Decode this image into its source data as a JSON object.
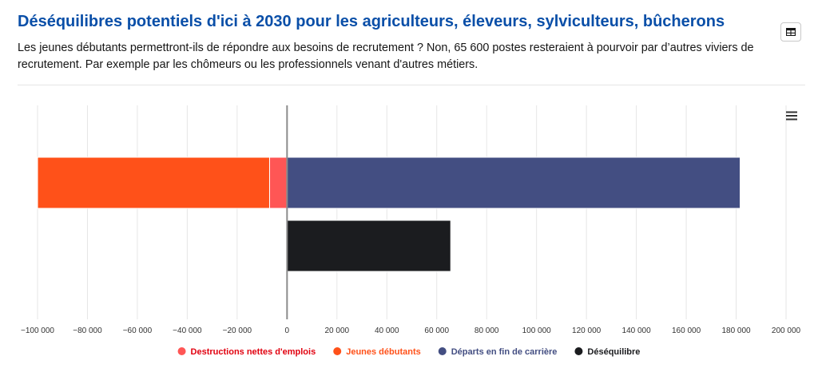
{
  "header": {
    "title": "Déséquilibres potentiels d'ici à 2030 pour les agriculteurs, éleveurs, sylviculteurs, bûcherons",
    "subtitle": "Les jeunes débutants permettront-ils de répondre aux besoins de recrutement ? Non, 65 600 postes resteraient à pourvoir par d’autres viviers de recrutement. Par exemple par les chômeurs ou les professionnels venant d'autres métiers.",
    "table_icon": "table-icon"
  },
  "menu_icon": "hamburger-menu-icon",
  "chart_data": {
    "type": "bar",
    "orientation": "horizontal",
    "stacked": true,
    "title": "",
    "xlabel": "",
    "ylabel": "",
    "xlim": [
      -100000,
      200000
    ],
    "x_ticks": [
      -100000,
      -80000,
      -60000,
      -40000,
      -20000,
      0,
      20000,
      40000,
      60000,
      80000,
      100000,
      120000,
      140000,
      160000,
      180000,
      200000
    ],
    "x_tick_labels": [
      "−100 000",
      "−80 000",
      "−60 000",
      "−40 000",
      "−20 000",
      "0",
      "20 000",
      "40 000",
      "60 000",
      "80 000",
      "100 000",
      "120 000",
      "140 000",
      "160 000",
      "180 000",
      "200 000"
    ],
    "grid": true,
    "legend_position": "bottom-center",
    "series": [
      {
        "name": "Destructions nettes d'emplois",
        "color": "#ff5655",
        "bar": 0,
        "stack": "negative",
        "value": -7000
      },
      {
        "name": "Jeunes débutants",
        "color": "#ff5119",
        "bar": 0,
        "stack": "negative",
        "value": -93000
      },
      {
        "name": "Départs en fin de carrière",
        "color": "#434e82",
        "bar": 0,
        "stack": "positive",
        "value": 181600
      },
      {
        "name": "Déséquilibre",
        "color": "#1b1c1f",
        "bar": 1,
        "stack": "positive",
        "value": 65600
      }
    ],
    "legend": [
      {
        "label": "Destructions nettes d'emplois",
        "color": "#ff5655",
        "text_color": "#e1000f"
      },
      {
        "label": "Jeunes débutants",
        "color": "#ff5119",
        "text_color": "#ff5119"
      },
      {
        "label": "Départs en fin de carrière",
        "color": "#434e82",
        "text_color": "#434e82"
      },
      {
        "label": "Déséquilibre",
        "color": "#1b1c1f",
        "text_color": "#1b1c1f"
      }
    ]
  }
}
